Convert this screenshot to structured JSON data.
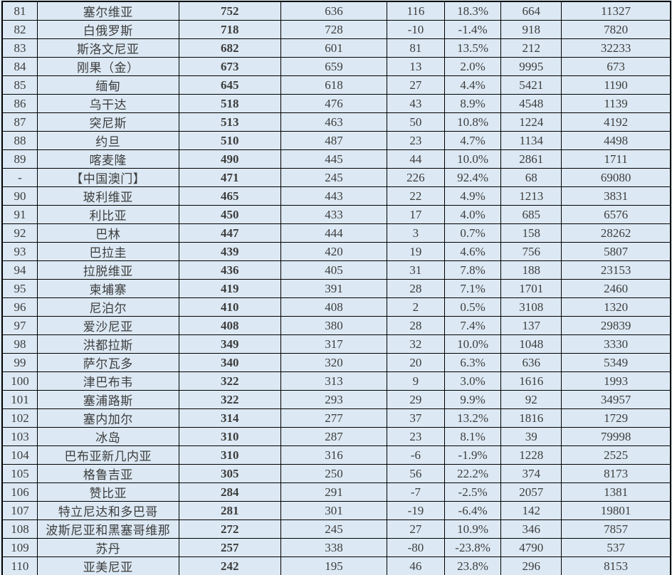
{
  "colors": {
    "background": "#dce9f4",
    "border": "#000000",
    "primary_value_red": "#cc2f2f",
    "number_text": "#3d3d3d",
    "name_text": "#111111"
  },
  "table": {
    "cell_names": [
      "rank-cell",
      "country-name-cell",
      "primary-value-cell",
      "previous-value-cell",
      "difference-cell",
      "percent-change-cell",
      "population-value-cell",
      "per-capita-value-cell"
    ],
    "rows": [
      {
        "rank": "81",
        "name": "塞尔维亚",
        "values": [
          "752",
          "636",
          "116",
          "18.3%",
          "664",
          "11327"
        ]
      },
      {
        "rank": "82",
        "name": "白俄罗斯",
        "values": [
          "718",
          "728",
          "-10",
          "-1.4%",
          "918",
          "7820"
        ]
      },
      {
        "rank": "83",
        "name": "斯洛文尼亚",
        "values": [
          "682",
          "601",
          "81",
          "13.5%",
          "212",
          "32233"
        ]
      },
      {
        "rank": "84",
        "name": "刚果（金）",
        "values": [
          "673",
          "659",
          "13",
          "2.0%",
          "9995",
          "673"
        ]
      },
      {
        "rank": "85",
        "name": "缅甸",
        "values": [
          "645",
          "618",
          "27",
          "4.4%",
          "5421",
          "1190"
        ]
      },
      {
        "rank": "86",
        "name": "乌干达",
        "values": [
          "518",
          "476",
          "43",
          "8.9%",
          "4548",
          "1139"
        ]
      },
      {
        "rank": "87",
        "name": "突尼斯",
        "values": [
          "513",
          "463",
          "50",
          "10.8%",
          "1224",
          "4192"
        ]
      },
      {
        "rank": "88",
        "name": "约旦",
        "values": [
          "510",
          "487",
          "23",
          "4.7%",
          "1134",
          "4498"
        ]
      },
      {
        "rank": "89",
        "name": "喀麦隆",
        "values": [
          "490",
          "445",
          "44",
          "10.0%",
          "2861",
          "1711"
        ]
      },
      {
        "rank": "-",
        "name": "【中国澳门】",
        "values": [
          "471",
          "245",
          "226",
          "92.4%",
          "68",
          "69080"
        ]
      },
      {
        "rank": "90",
        "name": "玻利维亚",
        "values": [
          "465",
          "443",
          "22",
          "4.9%",
          "1213",
          "3831"
        ]
      },
      {
        "rank": "91",
        "name": "利比亚",
        "values": [
          "450",
          "433",
          "17",
          "4.0%",
          "685",
          "6576"
        ]
      },
      {
        "rank": "92",
        "name": "巴林",
        "values": [
          "447",
          "444",
          "3",
          "0.7%",
          "158",
          "28262"
        ]
      },
      {
        "rank": "93",
        "name": "巴拉圭",
        "values": [
          "439",
          "420",
          "19",
          "4.6%",
          "756",
          "5807"
        ]
      },
      {
        "rank": "94",
        "name": "拉脱维亚",
        "values": [
          "436",
          "405",
          "31",
          "7.8%",
          "188",
          "23153"
        ]
      },
      {
        "rank": "95",
        "name": "柬埔寨",
        "values": [
          "419",
          "391",
          "28",
          "7.1%",
          "1701",
          "2460"
        ]
      },
      {
        "rank": "96",
        "name": "尼泊尔",
        "values": [
          "410",
          "408",
          "2",
          "0.5%",
          "3108",
          "1320"
        ]
      },
      {
        "rank": "97",
        "name": "爱沙尼亚",
        "values": [
          "408",
          "380",
          "28",
          "7.4%",
          "137",
          "29839"
        ]
      },
      {
        "rank": "98",
        "name": "洪都拉斯",
        "values": [
          "349",
          "317",
          "32",
          "10.0%",
          "1048",
          "3330"
        ]
      },
      {
        "rank": "99",
        "name": "萨尔瓦多",
        "values": [
          "340",
          "320",
          "20",
          "6.3%",
          "636",
          "5349"
        ]
      },
      {
        "rank": "100",
        "name": "津巴布韦",
        "values": [
          "322",
          "313",
          "9",
          "3.0%",
          "1616",
          "1993"
        ]
      },
      {
        "rank": "101",
        "name": "塞浦路斯",
        "values": [
          "322",
          "293",
          "29",
          "9.9%",
          "92",
          "34957"
        ]
      },
      {
        "rank": "102",
        "name": "塞内加尔",
        "values": [
          "314",
          "277",
          "37",
          "13.2%",
          "1816",
          "1729"
        ]
      },
      {
        "rank": "103",
        "name": "冰岛",
        "values": [
          "310",
          "287",
          "23",
          "8.1%",
          "39",
          "79998"
        ]
      },
      {
        "rank": "104",
        "name": "巴布亚新几内亚",
        "values": [
          "310",
          "316",
          "-6",
          "-1.9%",
          "1228",
          "2525"
        ]
      },
      {
        "rank": "105",
        "name": "格鲁吉亚",
        "values": [
          "305",
          "250",
          "56",
          "22.2%",
          "374",
          "8173"
        ]
      },
      {
        "rank": "106",
        "name": "赞比亚",
        "values": [
          "284",
          "291",
          "-7",
          "-2.5%",
          "2057",
          "1381"
        ]
      },
      {
        "rank": "107",
        "name": "特立尼达和多巴哥",
        "values": [
          "281",
          "301",
          "-19",
          "-6.4%",
          "142",
          "19801"
        ]
      },
      {
        "rank": "108",
        "name": "波斯尼亚和黑塞哥维那",
        "values": [
          "272",
          "245",
          "27",
          "10.9%",
          "346",
          "7857"
        ]
      },
      {
        "rank": "109",
        "name": "苏丹",
        "values": [
          "257",
          "338",
          "-80",
          "-23.8%",
          "4790",
          "537"
        ]
      },
      {
        "rank": "110",
        "name": "亚美尼亚",
        "values": [
          "242",
          "195",
          "46",
          "23.8%",
          "296",
          "8153"
        ]
      }
    ]
  }
}
